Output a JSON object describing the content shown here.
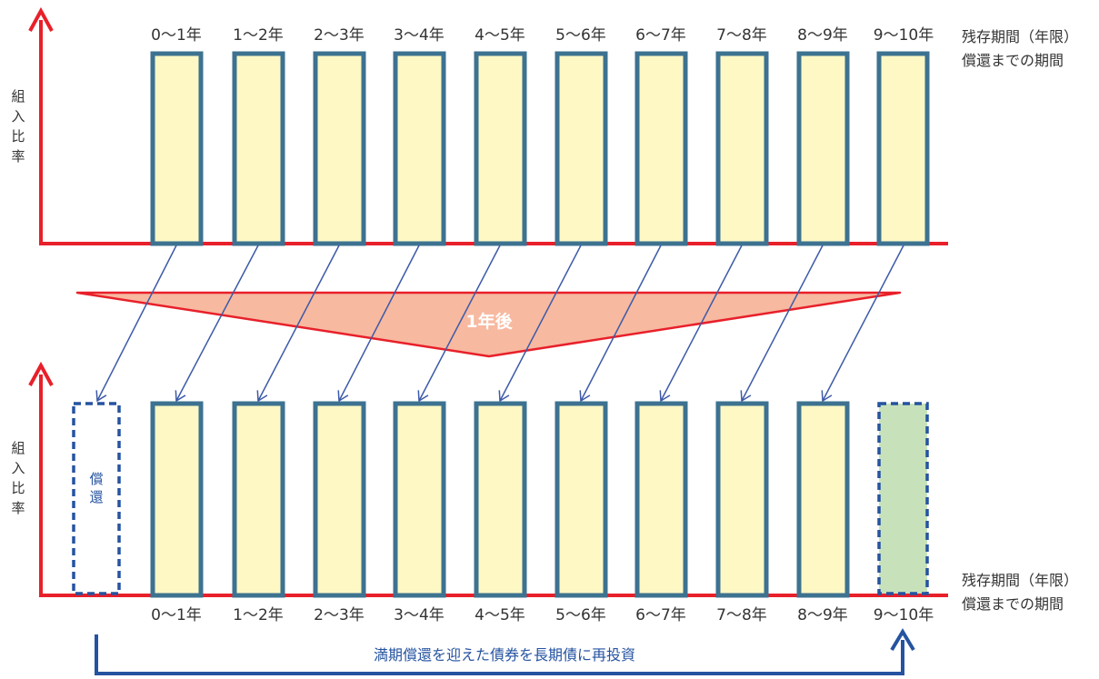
{
  "top_panel": {
    "y_axis_label": [
      "組",
      "入",
      "比",
      "率"
    ],
    "periods": [
      "0～1年",
      "1～2年",
      "2～3年",
      "3～4年",
      "4～5年",
      "5～6年",
      "6～7年",
      "7～8年",
      "8～9年",
      "9～10年"
    ],
    "legend_line1": "残存期間（年限）",
    "legend_line2": "償還までの期間"
  },
  "transition": {
    "label": "1年後"
  },
  "bottom_panel": {
    "y_axis_label": [
      "組",
      "入",
      "比",
      "率"
    ],
    "redeemed_label": "償還",
    "periods": [
      "0～1年",
      "1～2年",
      "2～3年",
      "3～4年",
      "4～5年",
      "5～6年",
      "6～7年",
      "7～8年",
      "8～9年",
      "9～10年"
    ],
    "legend_line1": "残存期間（年限）",
    "legend_line2": "償還までの期間",
    "reinvest_label": "満期償還を迎えた債券を長期債に再投資"
  },
  "colors": {
    "axis": "#e8202a",
    "bar_fill": "#fdf8c4",
    "bar_border": "#3d7290",
    "new_bar_fill": "#c7e2bb",
    "dashed": "#2553a0",
    "shift_arrow": "#3d5aa8",
    "triangle_fill": "#f7b9a0",
    "triangle_stroke": "#e8202a",
    "triangle_text": "#ffffff",
    "text": "#333333",
    "reinvest_text": "#2553a0"
  }
}
